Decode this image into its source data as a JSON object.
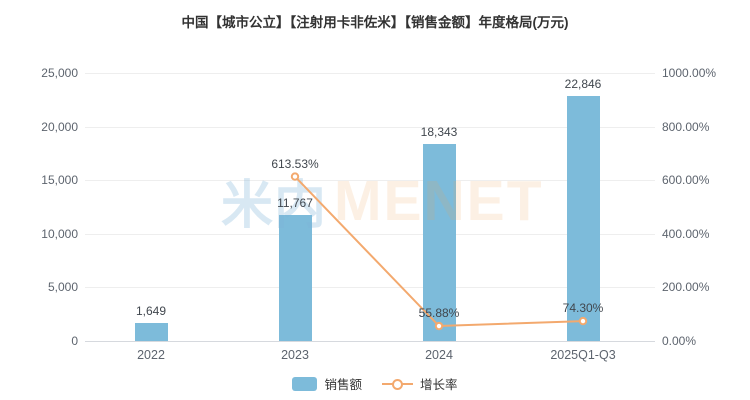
{
  "chart_data": {
    "type": "bar",
    "subtype": "bar-line-combo",
    "title": "中国【城市公立】【注射用卡非佐米】【销售金额】年度格局(万元)",
    "categories": [
      "2022",
      "2023",
      "2024",
      "2025Q1-Q3"
    ],
    "series": [
      {
        "name": "销售额",
        "chart_type": "bar",
        "axis": "left",
        "values": [
          1649,
          11767,
          18343,
          22846
        ],
        "labels": [
          "1,649",
          "11,767",
          "18,343",
          "22,846"
        ],
        "color": "#7dbbda"
      },
      {
        "name": "增长率",
        "chart_type": "line",
        "axis": "right",
        "values": [
          null,
          613.53,
          55.88,
          74.3
        ],
        "labels": [
          null,
          "613.53%",
          "55.88%",
          "74.30%"
        ],
        "color": "#f3a96e"
      }
    ],
    "left_axis": {
      "min": 0,
      "max": 25000,
      "tick_step": 5000,
      "ticks": [
        "0",
        "5,000",
        "10,000",
        "15,000",
        "20,000",
        "25,000"
      ]
    },
    "right_axis": {
      "min": 0,
      "max": 1000,
      "tick_step": 200,
      "ticks": [
        "0.00%",
        "200.00%",
        "400.00%",
        "600.00%",
        "800.00%",
        "1000.00%"
      ]
    },
    "grid": true,
    "legend_position": "bottom",
    "legend": [
      {
        "label": "销售额",
        "swatch": "bar"
      },
      {
        "label": "增长率",
        "swatch": "line"
      }
    ],
    "watermark": {
      "cn": "米内",
      "en": "MENET"
    }
  }
}
